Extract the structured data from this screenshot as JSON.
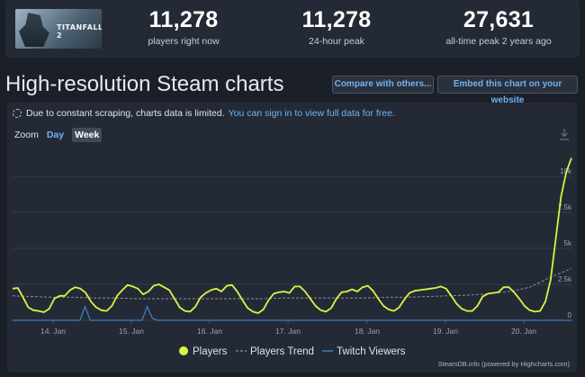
{
  "game": {
    "logo_text": "TITANFALL 2"
  },
  "stats": [
    {
      "value": "11,278",
      "label": "players right now"
    },
    {
      "value": "11,278",
      "label": "24-hour peak"
    },
    {
      "value": "27,631",
      "label": "all-time peak 2 years ago"
    }
  ],
  "section": {
    "title": "High-resolution Steam charts",
    "compare_label": "Compare with others...",
    "embed_label": "Embed this chart on your website"
  },
  "notice": {
    "text": "Due to constant scraping, charts data is limited.",
    "link": "You can sign in to view full data for free."
  },
  "zoom": {
    "label": "Zoom",
    "options": [
      "Day",
      "Week"
    ],
    "active": "Week"
  },
  "icons": {
    "download": "download-icon",
    "notice": "spinner-icon"
  },
  "colors": {
    "players": "#d8f544",
    "trend": "#8a8f99",
    "twitch": "#3f7ec0",
    "link": "#6fb4f2"
  },
  "credit": "SteamDB.info (powered by Highcharts.com)",
  "chart_data": {
    "type": "line",
    "x_ticks": [
      "14. Jan",
      "15. Jan",
      "16. Jan",
      "17. Jan",
      "18. Jan",
      "19. Jan",
      "20. Jan"
    ],
    "y_ticks": [
      "0",
      "2.5k",
      "5k",
      "7.5k",
      "10k"
    ],
    "ylim": [
      0,
      12000
    ],
    "grid": true,
    "legend_placement": "bottom-center",
    "series": [
      {
        "name": "Players",
        "values": [
          2200,
          2250,
          1600,
          900,
          700,
          650,
          560,
          800,
          1500,
          1700,
          1700,
          2100,
          2300,
          2200,
          1900,
          1300,
          900,
          700,
          650,
          1000,
          1700,
          2100,
          2450,
          2350,
          2200,
          1800,
          2000,
          2400,
          2500,
          2300,
          2100,
          1500,
          900,
          650,
          600,
          950,
          1600,
          1900,
          2100,
          2200,
          2000,
          2400,
          2450,
          2000,
          1400,
          850,
          600,
          500,
          750,
          1400,
          1850,
          1950,
          2000,
          1900,
          2350,
          2350,
          2000,
          1500,
          1000,
          700,
          600,
          850,
          1500,
          1950,
          2000,
          2150,
          2000,
          2300,
          2400,
          2050,
          1500,
          1000,
          750,
          650,
          900,
          1450,
          1900,
          2050,
          2100,
          2150,
          2200,
          2250,
          2350,
          2200,
          1700,
          1150,
          800,
          650,
          650,
          1000,
          1650,
          1850,
          1900,
          1950,
          2300,
          2300,
          1950,
          1500,
          1000,
          700,
          600,
          650,
          1300,
          2800,
          5700,
          8600,
          10300,
          11278
        ]
      },
      {
        "name": "Players Trend",
        "values": [
          1700,
          1650,
          1600,
          1600,
          1550,
          1550,
          1500,
          1500,
          1500,
          1500,
          1500,
          1500,
          1500,
          1550,
          1550,
          1550,
          1550,
          1550,
          1600,
          1600,
          1650,
          1700,
          1750,
          1850,
          2000,
          2300,
          3000,
          3600
        ]
      },
      {
        "name": "Twitch Viewers",
        "values": [
          0,
          0,
          0,
          0,
          0,
          0,
          0,
          0,
          0,
          0,
          0,
          0,
          0,
          0,
          950,
          0,
          0,
          0,
          0,
          0,
          0,
          0,
          0,
          0,
          0,
          0,
          950,
          150,
          0,
          0,
          0,
          0,
          0,
          0,
          0,
          0,
          0,
          0,
          0,
          0,
          0,
          0,
          0,
          0,
          0,
          0,
          0,
          0,
          0,
          0,
          0,
          0,
          0,
          0,
          0,
          0,
          0,
          0,
          0,
          0,
          0,
          0,
          0,
          0,
          0,
          0,
          0,
          0,
          0,
          0,
          0,
          0,
          0,
          0,
          0,
          0,
          0,
          0,
          0,
          0,
          0,
          0,
          0,
          0,
          0,
          0,
          0,
          0,
          0,
          0,
          0,
          0,
          0,
          0,
          0,
          0,
          0,
          0,
          0,
          0,
          0,
          0,
          0,
          0,
          0,
          0,
          0,
          0,
          0
        ]
      }
    ]
  }
}
